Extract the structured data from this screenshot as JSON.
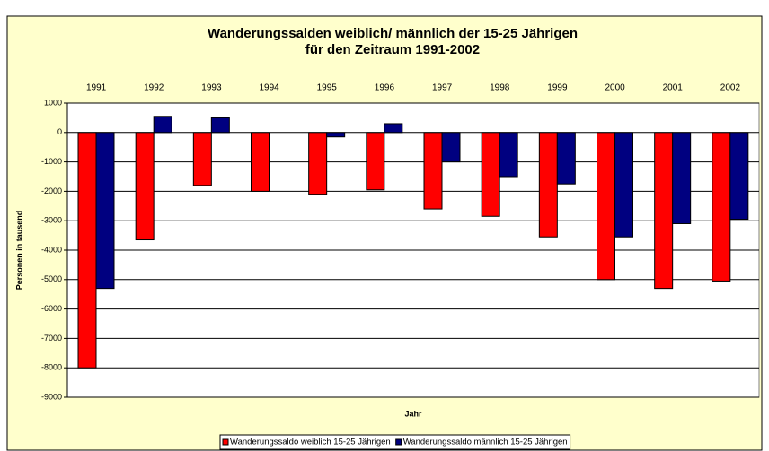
{
  "chart_data": {
    "type": "bar",
    "title": [
      "Wanderungssalden weiblich/ männlich der 15-25 Jährigen",
      "für den Zeitraum 1991-2002"
    ],
    "x_label": "Jahr",
    "y_label": "Personen in tausend",
    "categories": [
      "1991",
      "1992",
      "1993",
      "1994",
      "1995",
      "1996",
      "1997",
      "1998",
      "1999",
      "2000",
      "2001",
      "2002"
    ],
    "series": [
      {
        "name": "Wanderungssaldo weiblich 15-25 Jährigen",
        "color": "#ff0000",
        "values": [
          -8000,
          -3650,
          -1800,
          -2000,
          -2100,
          -1950,
          -2600,
          -2850,
          -3550,
          -5000,
          -5300,
          -5050
        ]
      },
      {
        "name": "Wanderungssaldo männlich 15-25 Jährigen",
        "color": "#000080",
        "values": [
          -5300,
          550,
          500,
          0,
          -150,
          300,
          -1000,
          -1500,
          -1750,
          -3550,
          -3100,
          -2950
        ]
      }
    ],
    "ylim": [
      -9000,
      1000
    ],
    "yticks": [
      1000,
      0,
      -1000,
      -2000,
      -3000,
      -4000,
      -5000,
      -6000,
      -7000,
      -8000,
      -9000
    ],
    "grid": true,
    "legend": "bottom"
  }
}
